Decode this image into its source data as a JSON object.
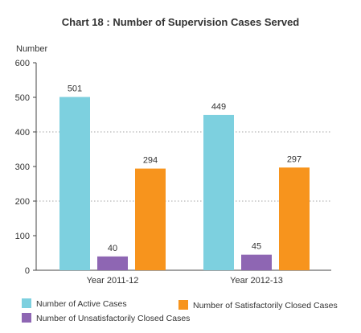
{
  "chart_data": {
    "type": "bar",
    "title": "Chart 18 : Number of Supervision Cases Served",
    "xlabel": "",
    "ylabel": "Number",
    "ylim": [
      0,
      600
    ],
    "yticks": [
      "0",
      "100",
      "200",
      "300",
      "400",
      "500",
      "600"
    ],
    "grid": "dotted horizontal lines at 200 and 400",
    "categories": [
      "Year 2011-12",
      "Year 2012-13"
    ],
    "series": [
      {
        "name": "Number of Active Cases",
        "color": "#7DD0DF",
        "values": [
          501,
          449
        ]
      },
      {
        "name": "Number of Unsatisfactorily Closed Cases",
        "color": "#8E66B3",
        "values": [
          40,
          45
        ]
      },
      {
        "name": "Number of Satisfactorily Closed Cases",
        "color": "#F7941D",
        "values": [
          294,
          297
        ]
      }
    ],
    "legend_position": "bottom"
  }
}
